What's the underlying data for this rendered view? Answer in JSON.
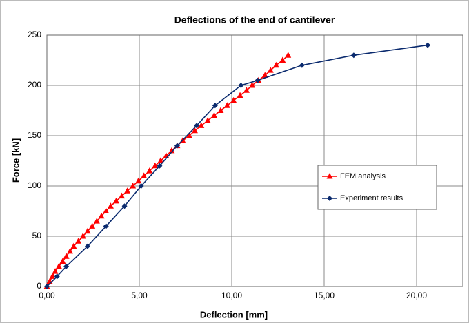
{
  "chart_data": {
    "type": "line",
    "title": "Deflections  of the end of cantilever",
    "x_label": "Deflection [mm]",
    "y_label": "Force  [kN]",
    "xlim": [
      0,
      22.5
    ],
    "ylim": [
      0,
      250
    ],
    "xticks": [
      {
        "value": 0,
        "label": "0,00"
      },
      {
        "value": 5,
        "label": "5,00"
      },
      {
        "value": 10,
        "label": "10,00"
      },
      {
        "value": 15,
        "label": "15,00"
      },
      {
        "value": 20,
        "label": "20,00"
      }
    ],
    "yticks": [
      0,
      50,
      100,
      150,
      200,
      250
    ],
    "grid": true,
    "legend": "right",
    "series": [
      {
        "name": "FEM analysis",
        "color": "#ff0000",
        "marker": "triangle",
        "x": [
          0,
          0.15,
          0.3,
          0.45,
          0.65,
          0.85,
          1.05,
          1.25,
          1.45,
          1.7,
          1.95,
          2.2,
          2.45,
          2.7,
          2.95,
          3.2,
          3.45,
          3.75,
          4.05,
          4.35,
          4.65,
          4.95,
          5.25,
          5.55,
          5.85,
          6.15,
          6.45,
          6.75,
          7.05,
          7.35,
          7.7,
          8.0,
          8.35,
          8.7,
          9.05,
          9.4,
          9.75,
          10.1,
          10.45,
          10.8,
          11.1,
          11.45,
          11.8,
          12.1,
          12.4,
          12.75,
          13.05
        ],
        "values": [
          0,
          5,
          10,
          15,
          20,
          25,
          30,
          35,
          40,
          45,
          50,
          55,
          60,
          65,
          70,
          75,
          80,
          85,
          90,
          95,
          100,
          105,
          110,
          115,
          120,
          125,
          130,
          135,
          140,
          145,
          150,
          155,
          160,
          165,
          170,
          175,
          180,
          185,
          190,
          195,
          200,
          205,
          210,
          215,
          220,
          225,
          230
        ]
      },
      {
        "name": "Experiment results",
        "color": "#0a2a6e",
        "marker": "diamond",
        "x": [
          0,
          0.55,
          1.05,
          2.2,
          3.2,
          4.2,
          5.1,
          6.1,
          7.05,
          8.1,
          9.1,
          10.5,
          11.4,
          13.8,
          16.6,
          20.6
        ],
        "values": [
          0,
          10,
          20,
          40,
          60,
          80,
          100,
          120,
          140,
          160,
          180,
          200,
          205,
          220,
          230,
          240
        ]
      }
    ]
  }
}
